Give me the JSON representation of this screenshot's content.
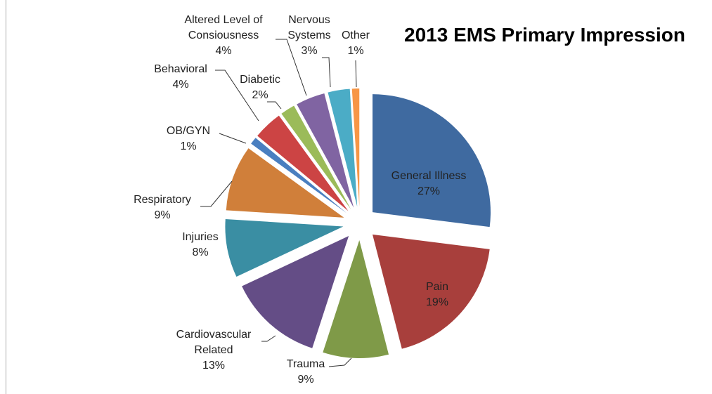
{
  "chart_data": {
    "type": "pie",
    "title": "2013 EMS Primary Impression",
    "categories": [
      "General Illness",
      "Pain",
      "Trauma",
      "Cardiovascular Related",
      "Injuries",
      "Respiratory",
      "OB/GYN",
      "Behavioral",
      "Diabetic",
      "Altered Level of Consiousness",
      "Nervous Systems",
      "Other"
    ],
    "values": [
      27,
      19,
      9,
      13,
      8,
      9,
      1,
      4,
      2,
      4,
      3,
      1
    ],
    "value_labels": [
      "27%",
      "19%",
      "9%",
      "13%",
      "8%",
      "9%",
      "1%",
      "4%",
      "2%",
      "4%",
      "3%",
      "1%"
    ],
    "colors": [
      "#3f6aa0",
      "#a83f3c",
      "#7f9a48",
      "#644d86",
      "#3a8ea3",
      "#d07f3a",
      "#4a7fc0",
      "#cc4444",
      "#9bbb59",
      "#8064a2",
      "#4bacc6",
      "#f79646"
    ]
  }
}
